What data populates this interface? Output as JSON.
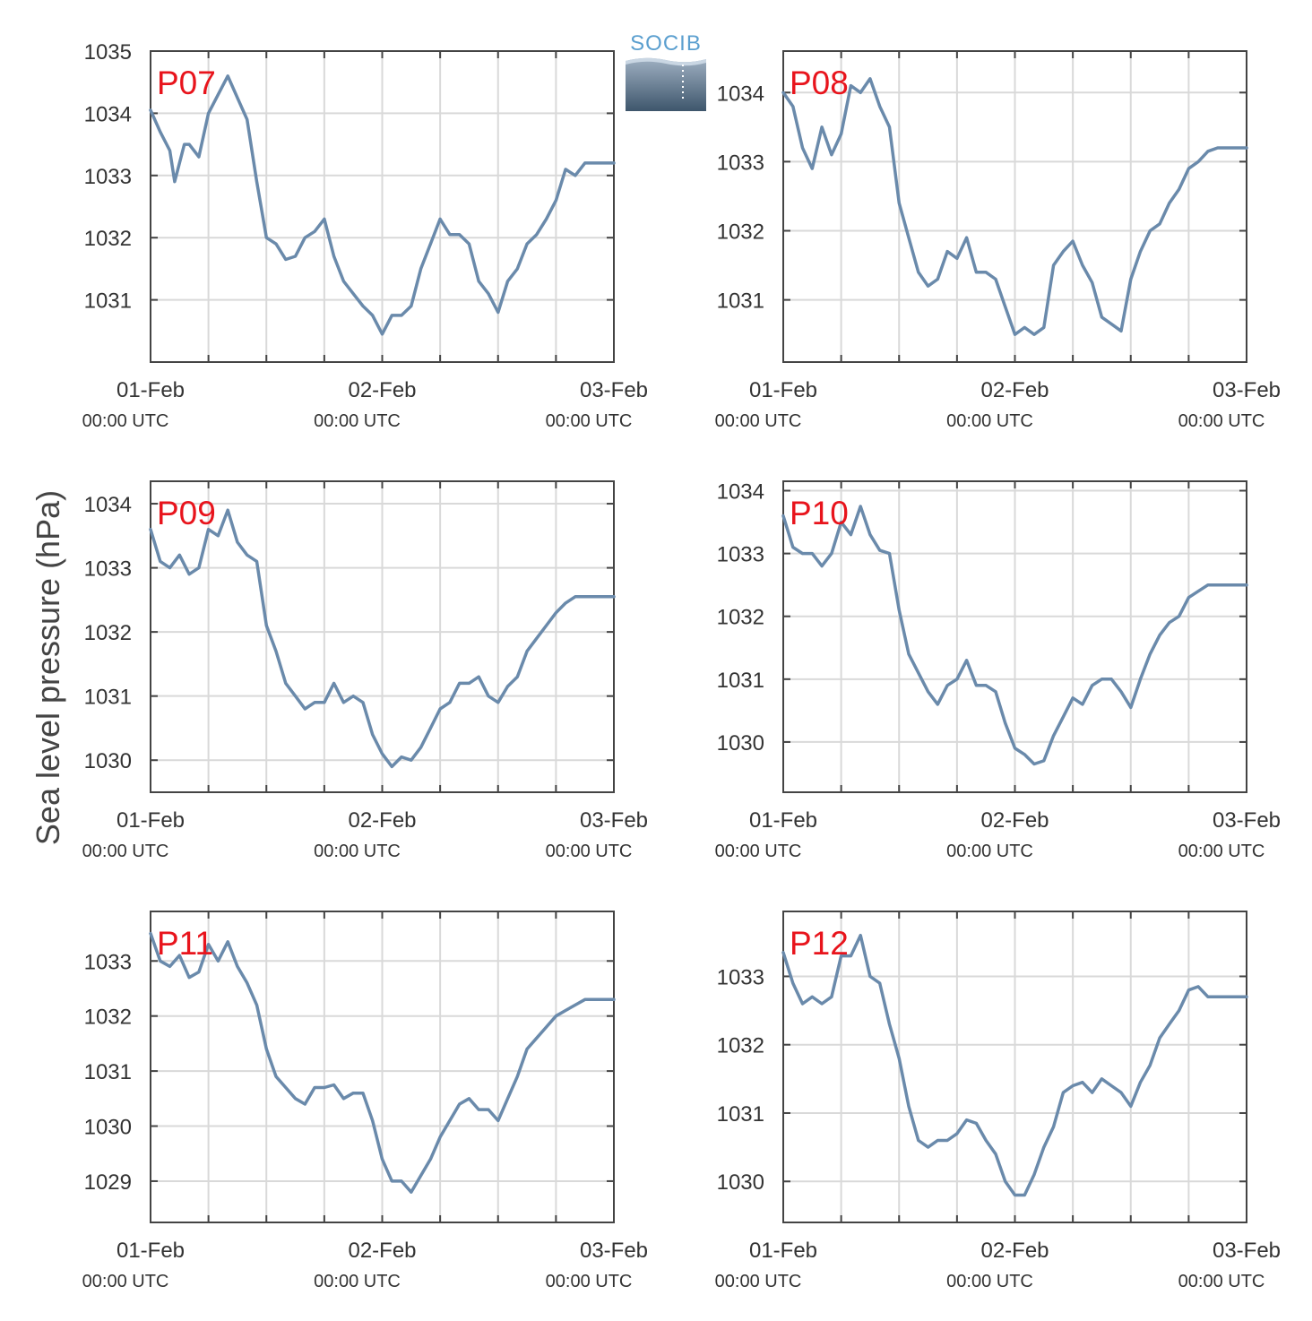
{
  "y_axis_label": "Sea level pressure (hPa)",
  "logo_text": "SOCIB",
  "colors": {
    "line": "#6a8aab",
    "label": "#e8141c",
    "axis": "#444444",
    "grid": "#d9d9d9",
    "text": "#333333"
  },
  "chart_data": [
    {
      "type": "line",
      "panel_label": "P07",
      "x_ticks": [
        {
          "date": "01-Feb",
          "time": "00:00 UTC"
        },
        {
          "date": "02-Feb",
          "time": "00:00 UTC"
        },
        {
          "date": "03-Feb",
          "time": "00:00 UTC"
        }
      ],
      "xlim_hours": [
        0,
        48
      ],
      "ylim": [
        1030.0,
        1035.0
      ],
      "y_ticks": [
        1031,
        1032,
        1033,
        1034,
        1035
      ],
      "grid": true,
      "series": [
        {
          "x_hours": [
            0,
            1,
            2,
            2.5,
            3,
            3.5,
            4,
            5,
            6,
            7,
            8,
            9,
            10,
            11,
            12,
            13,
            14,
            15,
            16,
            17,
            18,
            19,
            20,
            21,
            22,
            23,
            24,
            25,
            26,
            27,
            28,
            29,
            30,
            31,
            32,
            33,
            34,
            35,
            36,
            37,
            38,
            39,
            40,
            41,
            42,
            43,
            44,
            45,
            46,
            47,
            48
          ],
          "values": [
            1034.05,
            1033.7,
            1033.4,
            1032.9,
            1033.2,
            1033.5,
            1033.5,
            1033.3,
            1034.0,
            1034.3,
            1034.6,
            1034.25,
            1033.9,
            1032.9,
            1032.0,
            1031.9,
            1031.65,
            1031.7,
            1032.0,
            1032.1,
            1032.3,
            1031.7,
            1031.3,
            1031.1,
            1030.9,
            1030.75,
            1030.45,
            1030.75,
            1030.75,
            1030.9,
            1031.5,
            1031.9,
            1032.3,
            1032.05,
            1032.05,
            1031.9,
            1031.3,
            1031.1,
            1030.8,
            1031.3,
            1031.5,
            1031.9,
            1032.05,
            1032.3,
            1032.6,
            1033.1,
            1033.0,
            1033.2,
            1033.2,
            1033.2,
            1033.2
          ]
        }
      ]
    },
    {
      "type": "line",
      "panel_label": "P08",
      "x_ticks": [
        {
          "date": "01-Feb",
          "time": "00:00 UTC"
        },
        {
          "date": "02-Feb",
          "time": "00:00 UTC"
        },
        {
          "date": "03-Feb",
          "time": "00:00 UTC"
        }
      ],
      "xlim_hours": [
        0,
        48
      ],
      "ylim": [
        1030.1,
        1034.6
      ],
      "y_ticks": [
        1031,
        1032,
        1033,
        1034
      ],
      "grid": true,
      "series": [
        {
          "x_hours": [
            0,
            1,
            2,
            3,
            4,
            5,
            6,
            7,
            8,
            9,
            10,
            11,
            12,
            13,
            14,
            15,
            16,
            17,
            18,
            19,
            20,
            21,
            22,
            23,
            24,
            25,
            26,
            27,
            28,
            29,
            30,
            31,
            32,
            33,
            34,
            35,
            36,
            37,
            38,
            39,
            40,
            41,
            42,
            43,
            44,
            45,
            46,
            47,
            48
          ],
          "values": [
            1034.0,
            1033.8,
            1033.2,
            1032.9,
            1033.5,
            1033.1,
            1033.4,
            1034.1,
            1034.0,
            1034.2,
            1033.8,
            1033.5,
            1032.4,
            1031.9,
            1031.4,
            1031.2,
            1031.3,
            1031.7,
            1031.6,
            1031.9,
            1031.4,
            1031.4,
            1031.3,
            1030.9,
            1030.5,
            1030.6,
            1030.5,
            1030.6,
            1031.5,
            1031.7,
            1031.85,
            1031.5,
            1031.25,
            1030.75,
            1030.65,
            1030.55,
            1031.3,
            1031.7,
            1032.0,
            1032.1,
            1032.4,
            1032.6,
            1032.9,
            1033.0,
            1033.15,
            1033.2,
            1033.2,
            1033.2,
            1033.2
          ]
        }
      ]
    },
    {
      "type": "line",
      "panel_label": "P09",
      "x_ticks": [
        {
          "date": "01-Feb",
          "time": "00:00 UTC"
        },
        {
          "date": "02-Feb",
          "time": "00:00 UTC"
        },
        {
          "date": "03-Feb",
          "time": "00:00 UTC"
        }
      ],
      "xlim_hours": [
        0,
        48
      ],
      "ylim": [
        1029.5,
        1034.35
      ],
      "y_ticks": [
        1030,
        1031,
        1032,
        1033,
        1034
      ],
      "grid": true,
      "series": [
        {
          "x_hours": [
            0,
            1,
            2,
            3,
            4,
            5,
            6,
            7,
            8,
            9,
            10,
            11,
            12,
            13,
            14,
            15,
            16,
            17,
            18,
            19,
            20,
            21,
            22,
            23,
            24,
            25,
            26,
            27,
            28,
            29,
            30,
            31,
            32,
            33,
            34,
            35,
            36,
            37,
            38,
            39,
            40,
            41,
            42,
            43,
            44,
            45,
            46,
            47,
            48
          ],
          "values": [
            1033.6,
            1033.1,
            1033.0,
            1033.2,
            1032.9,
            1033.0,
            1033.6,
            1033.5,
            1033.9,
            1033.4,
            1033.2,
            1033.1,
            1032.1,
            1031.7,
            1031.2,
            1031.0,
            1030.8,
            1030.9,
            1030.9,
            1031.2,
            1030.9,
            1031.0,
            1030.9,
            1030.4,
            1030.1,
            1029.9,
            1030.05,
            1030.0,
            1030.2,
            1030.5,
            1030.8,
            1030.9,
            1031.2,
            1031.2,
            1031.3,
            1031.0,
            1030.9,
            1031.15,
            1031.3,
            1031.7,
            1031.9,
            1032.1,
            1032.3,
            1032.45,
            1032.55,
            1032.55,
            1032.55,
            1032.55,
            1032.55
          ]
        }
      ]
    },
    {
      "type": "line",
      "panel_label": "P10",
      "x_ticks": [
        {
          "date": "01-Feb",
          "time": "00:00 UTC"
        },
        {
          "date": "02-Feb",
          "time": "00:00 UTC"
        },
        {
          "date": "03-Feb",
          "time": "00:00 UTC"
        }
      ],
      "xlim_hours": [
        0,
        48
      ],
      "ylim": [
        1029.2,
        1034.15
      ],
      "y_ticks": [
        1030,
        1031,
        1032,
        1033,
        1034
      ],
      "grid": true,
      "series": [
        {
          "x_hours": [
            0,
            1,
            2,
            3,
            4,
            5,
            6,
            7,
            8,
            9,
            10,
            11,
            12,
            13,
            14,
            15,
            16,
            17,
            18,
            19,
            20,
            21,
            22,
            23,
            24,
            25,
            26,
            27,
            28,
            29,
            30,
            31,
            32,
            33,
            34,
            35,
            36,
            37,
            38,
            39,
            40,
            41,
            42,
            43,
            44,
            45,
            46,
            47,
            48
          ],
          "values": [
            1033.6,
            1033.1,
            1033.0,
            1033.0,
            1032.8,
            1033.0,
            1033.5,
            1033.3,
            1033.75,
            1033.3,
            1033.05,
            1033.0,
            1032.1,
            1031.4,
            1031.1,
            1030.8,
            1030.6,
            1030.9,
            1031.0,
            1031.3,
            1030.9,
            1030.9,
            1030.8,
            1030.3,
            1029.9,
            1029.8,
            1029.65,
            1029.7,
            1030.1,
            1030.4,
            1030.7,
            1030.6,
            1030.9,
            1031.0,
            1031.0,
            1030.8,
            1030.55,
            1031.0,
            1031.4,
            1031.7,
            1031.9,
            1032.0,
            1032.3,
            1032.4,
            1032.5,
            1032.5,
            1032.5,
            1032.5,
            1032.5
          ]
        }
      ]
    },
    {
      "type": "line",
      "panel_label": "P11",
      "x_ticks": [
        {
          "date": "01-Feb",
          "time": "00:00 UTC"
        },
        {
          "date": "02-Feb",
          "time": "00:00 UTC"
        },
        {
          "date": "03-Feb",
          "time": "00:00 UTC"
        }
      ],
      "xlim_hours": [
        0,
        48
      ],
      "ylim": [
        1028.25,
        1033.9
      ],
      "y_ticks": [
        1029,
        1030,
        1031,
        1032,
        1033
      ],
      "grid": true,
      "series": [
        {
          "x_hours": [
            0,
            1,
            2,
            3,
            4,
            5,
            6,
            7,
            8,
            9,
            10,
            11,
            12,
            13,
            14,
            15,
            16,
            17,
            18,
            19,
            20,
            21,
            22,
            23,
            24,
            25,
            26,
            27,
            28,
            29,
            30,
            31,
            32,
            33,
            34,
            35,
            36,
            37,
            38,
            39,
            40,
            41,
            42,
            43,
            44,
            45,
            46,
            47,
            48
          ],
          "values": [
            1033.5,
            1033.0,
            1032.9,
            1033.1,
            1032.7,
            1032.8,
            1033.3,
            1033.0,
            1033.35,
            1032.9,
            1032.6,
            1032.2,
            1031.4,
            1030.9,
            1030.7,
            1030.5,
            1030.4,
            1030.7,
            1030.7,
            1030.75,
            1030.5,
            1030.6,
            1030.6,
            1030.1,
            1029.4,
            1029.0,
            1029.0,
            1028.8,
            1029.1,
            1029.4,
            1029.8,
            1030.1,
            1030.4,
            1030.5,
            1030.3,
            1030.3,
            1030.1,
            1030.5,
            1030.9,
            1031.4,
            1031.6,
            1031.8,
            1032.0,
            1032.1,
            1032.2,
            1032.3,
            1032.3,
            1032.3,
            1032.3
          ]
        }
      ]
    },
    {
      "type": "line",
      "panel_label": "P12",
      "x_ticks": [
        {
          "date": "01-Feb",
          "time": "00:00 UTC"
        },
        {
          "date": "02-Feb",
          "time": "00:00 UTC"
        },
        {
          "date": "03-Feb",
          "time": "00:00 UTC"
        }
      ],
      "xlim_hours": [
        0,
        48
      ],
      "ylim": [
        1029.4,
        1033.95
      ],
      "y_ticks": [
        1030,
        1031,
        1032,
        1033
      ],
      "grid": true,
      "series": [
        {
          "x_hours": [
            0,
            1,
            2,
            3,
            4,
            5,
            6,
            7,
            8,
            9,
            10,
            11,
            12,
            13,
            14,
            15,
            16,
            17,
            18,
            19,
            20,
            21,
            22,
            23,
            24,
            25,
            26,
            27,
            28,
            29,
            30,
            31,
            32,
            33,
            34,
            35,
            36,
            37,
            38,
            39,
            40,
            41,
            42,
            43,
            44,
            45,
            46,
            47,
            48
          ],
          "values": [
            1033.35,
            1032.9,
            1032.6,
            1032.7,
            1032.6,
            1032.7,
            1033.3,
            1033.3,
            1033.6,
            1033.0,
            1032.9,
            1032.3,
            1031.8,
            1031.1,
            1030.6,
            1030.5,
            1030.6,
            1030.6,
            1030.7,
            1030.9,
            1030.85,
            1030.6,
            1030.4,
            1030.0,
            1029.8,
            1029.8,
            1030.1,
            1030.5,
            1030.8,
            1031.3,
            1031.4,
            1031.45,
            1031.3,
            1031.5,
            1031.4,
            1031.3,
            1031.1,
            1031.45,
            1031.7,
            1032.1,
            1032.3,
            1032.5,
            1032.8,
            1032.85,
            1032.7,
            1032.7,
            1032.7,
            1032.7,
            1032.7
          ]
        }
      ]
    }
  ]
}
